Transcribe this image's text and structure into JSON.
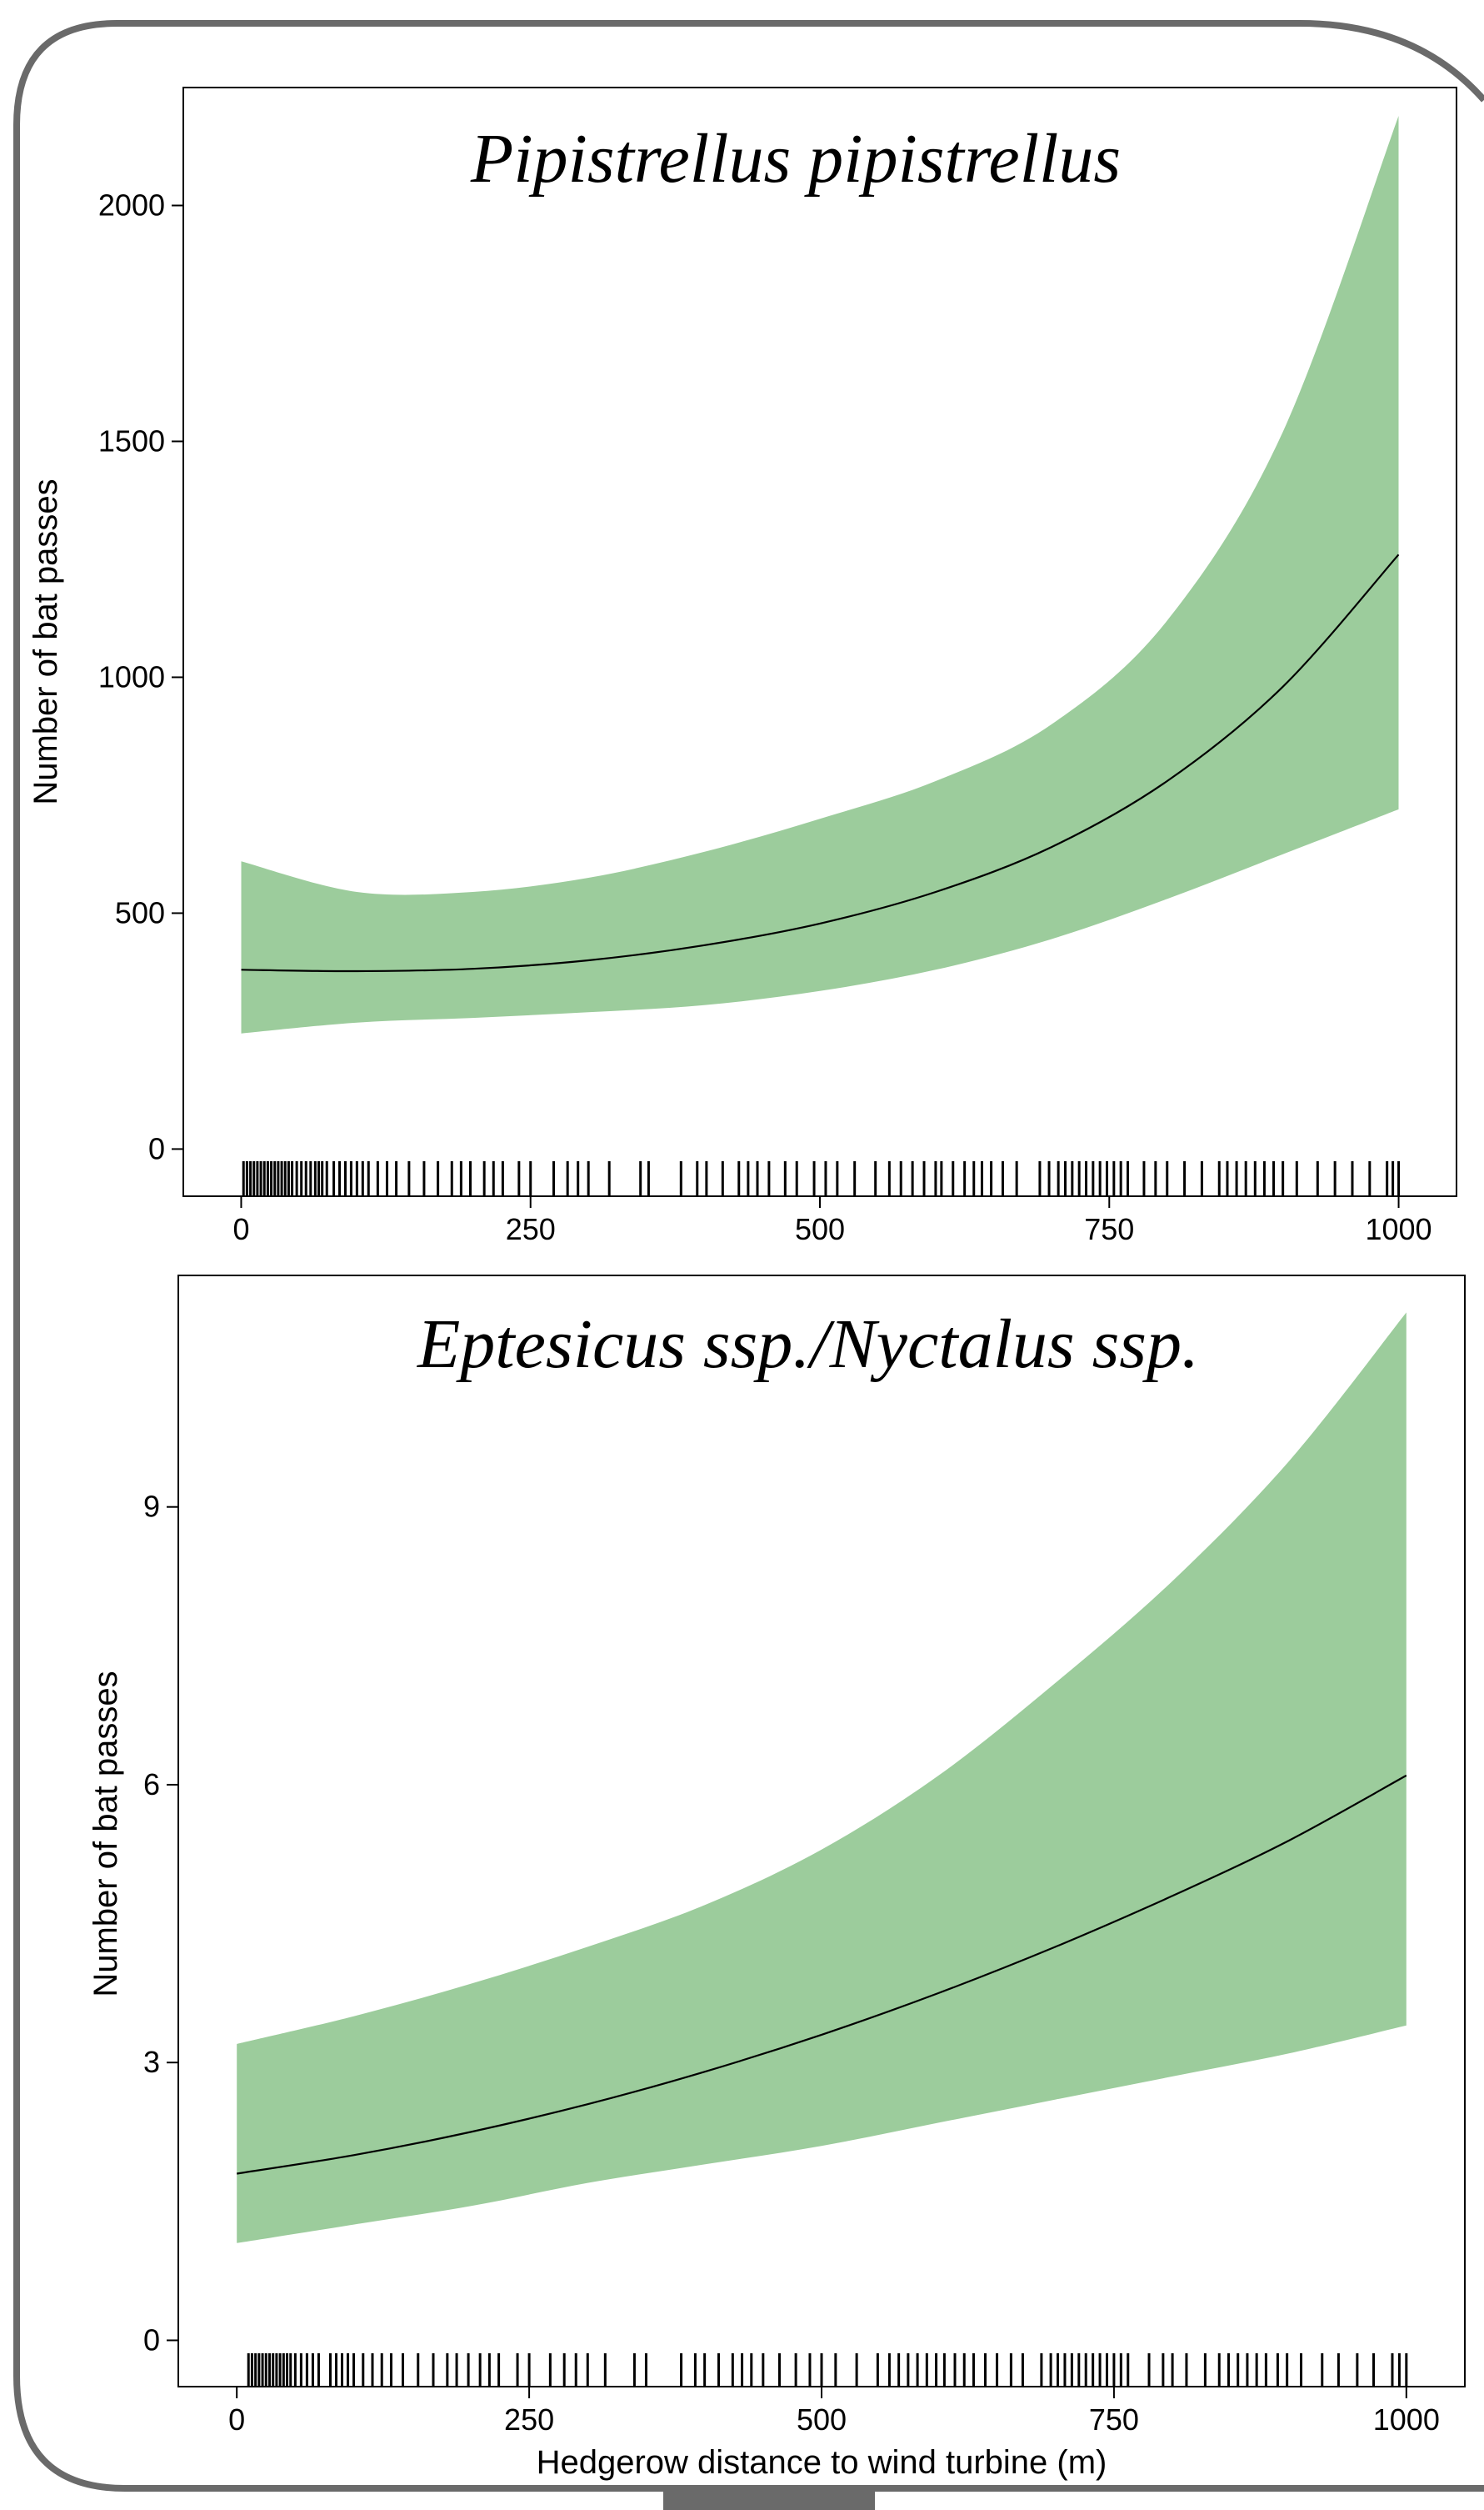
{
  "chart_data": [
    {
      "type": "line",
      "title": "Pipistrellus pipistrellus",
      "xlabel": "",
      "ylabel": "Number of bat passes",
      "xlim": [
        -50,
        1050
      ],
      "ylim": [
        -100,
        2250
      ],
      "xticks": [
        0,
        250,
        500,
        750,
        1000
      ],
      "yticks": [
        0,
        500,
        1000,
        1500,
        2000
      ],
      "x": [
        0,
        100,
        200,
        300,
        400,
        500,
        600,
        700,
        800,
        900,
        1000
      ],
      "y": [
        380,
        377,
        382,
        400,
        432,
        478,
        545,
        640,
        780,
        980,
        1260
      ],
      "lower": [
        245,
        268,
        278,
        290,
        305,
        335,
        380,
        445,
        530,
        625,
        720
      ],
      "upper": [
        610,
        545,
        545,
        575,
        630,
        700,
        780,
        900,
        1120,
        1520,
        2190
      ],
      "band_color": "#9ccc9c",
      "line_color": "#000000",
      "rug": [
        2,
        5,
        8,
        11,
        14,
        17,
        20,
        23,
        26,
        29,
        32,
        35,
        38,
        41,
        44,
        48,
        52,
        56,
        60,
        64,
        67,
        70,
        74,
        80,
        85,
        90,
        95,
        100,
        105,
        110,
        118,
        126,
        134,
        145,
        158,
        170,
        182,
        190,
        198,
        210,
        218,
        226,
        240,
        250,
        270,
        282,
        291,
        300,
        318,
        345,
        352,
        380,
        394,
        402,
        416,
        430,
        438,
        446,
        456,
        470,
        480,
        495,
        505,
        515,
        530,
        548,
        560,
        570,
        580,
        590,
        600,
        605,
        615,
        625,
        633,
        640,
        648,
        658,
        670,
        690,
        698,
        706,
        712,
        718,
        724,
        730,
        736,
        742,
        748,
        754,
        760,
        766,
        780,
        790,
        800,
        815,
        830,
        845,
        852,
        860,
        868,
        876,
        884,
        892,
        900,
        912,
        930,
        945,
        960,
        975,
        990,
        995,
        1000
      ]
    },
    {
      "type": "line",
      "title": "Eptesicus ssp./Nyctalus ssp.",
      "xlabel": "Hedgerow distance to wind turbine (m)",
      "ylabel": "Number of bat passes",
      "xlim": [
        -50,
        1050
      ],
      "ylim": [
        -0.5,
        11.5
      ],
      "xticks": [
        0,
        250,
        500,
        750,
        1000
      ],
      "yticks": [
        0,
        3,
        6,
        9
      ],
      "x": [
        0,
        100,
        200,
        300,
        400,
        500,
        600,
        700,
        800,
        900,
        1000
      ],
      "y": [
        1.8,
        2.0,
        2.25,
        2.55,
        2.9,
        3.3,
        3.75,
        4.25,
        4.8,
        5.4,
        6.1
      ],
      "lower": [
        1.05,
        1.25,
        1.45,
        1.7,
        1.9,
        2.1,
        2.35,
        2.6,
        2.85,
        3.1,
        3.4
      ],
      "upper": [
        3.2,
        3.5,
        3.85,
        4.25,
        4.7,
        5.3,
        6.1,
        7.1,
        8.2,
        9.5,
        11.1
      ],
      "band_color": "#9ccc9c",
      "line_color": "#000000",
      "rug": [
        10,
        13,
        16,
        19,
        22,
        25,
        28,
        31,
        34,
        37,
        40,
        43,
        46,
        50,
        55,
        60,
        65,
        70,
        80,
        85,
        90,
        95,
        100,
        108,
        116,
        124,
        132,
        142,
        155,
        168,
        180,
        188,
        198,
        208,
        216,
        224,
        240,
        250,
        268,
        280,
        290,
        300,
        315,
        340,
        350,
        380,
        392,
        400,
        412,
        424,
        432,
        440,
        450,
        464,
        478,
        490,
        500,
        512,
        530,
        548,
        558,
        566,
        574,
        582,
        590,
        598,
        605,
        614,
        622,
        630,
        640,
        650,
        662,
        672,
        688,
        696,
        702,
        708,
        714,
        720,
        726,
        732,
        738,
        744,
        750,
        756,
        762,
        780,
        792,
        800,
        812,
        828,
        840,
        848,
        856,
        864,
        872,
        880,
        890,
        898,
        910,
        928,
        942,
        958,
        972,
        988,
        994,
        1000
      ]
    }
  ]
}
